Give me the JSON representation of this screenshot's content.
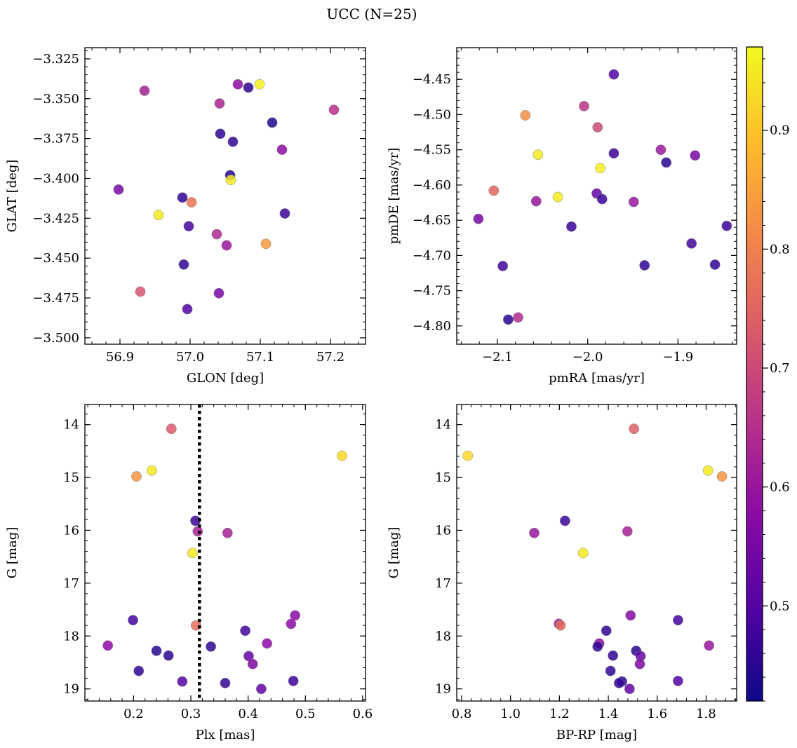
{
  "figure": {
    "title": "UCC (N=25)"
  },
  "colorbar": {
    "colormap": "plasma",
    "vmin": 0.42,
    "vmax": 0.97,
    "ticks": [
      0.5,
      0.6,
      0.7,
      0.8,
      0.9
    ],
    "tick_labels": [
      "0.5",
      "0.6",
      "0.7",
      "0.8",
      "0.9"
    ],
    "colors": [
      "#0d0887",
      "#5302a3",
      "#8b0aa5",
      "#b83289",
      "#db5c68",
      "#f48849",
      "#febd2a",
      "#f0f921"
    ]
  },
  "chart_data": [
    {
      "type": "scatter",
      "title": "",
      "xlabel": "GLON [deg]",
      "ylabel": "GLAT [deg]",
      "xlim": [
        56.85,
        57.25
      ],
      "ylim": [
        -3.504,
        -3.318
      ],
      "y_inverted": false,
      "xticks": [
        56.9,
        57.0,
        57.1,
        57.2
      ],
      "xtick_labels": [
        "56.9",
        "57.0",
        "57.1",
        "57.2"
      ],
      "yticks": [
        -3.325,
        -3.35,
        -3.375,
        -3.4,
        -3.425,
        -3.45,
        -3.475,
        -3.5
      ],
      "ytick_labels": [
        "−3.325",
        "−3.350",
        "−3.375",
        "−3.400",
        "−3.425",
        "−3.450",
        "−3.475",
        "−3.500"
      ],
      "x": [
        56.935,
        57.068,
        57.083,
        57.099,
        57.205,
        57.042,
        57.117,
        57.043,
        57.061,
        57.131,
        57.057,
        57.058,
        56.898,
        56.989,
        57.002,
        56.955,
        57.135,
        56.998,
        57.038,
        57.052,
        57.108,
        56.991,
        56.929,
        57.041,
        56.996
      ],
      "y": [
        -3.345,
        -3.341,
        -3.343,
        -3.341,
        -3.357,
        -3.353,
        -3.365,
        -3.372,
        -3.377,
        -3.382,
        -3.398,
        -3.401,
        -3.407,
        -3.412,
        -3.415,
        -3.423,
        -3.422,
        -3.43,
        -3.435,
        -3.442,
        -3.441,
        -3.454,
        -3.471,
        -3.472,
        -3.482
      ],
      "color_values": [
        0.62,
        0.58,
        0.46,
        0.96,
        0.65,
        0.63,
        0.44,
        0.46,
        0.46,
        0.58,
        0.45,
        0.95,
        0.55,
        0.46,
        0.78,
        0.95,
        0.47,
        0.48,
        0.64,
        0.6,
        0.84,
        0.46,
        0.72,
        0.55,
        0.5
      ]
    },
    {
      "type": "scatter",
      "title": "",
      "xlabel": "pmRA [mas/yr]",
      "ylabel": "pmDE [mas/yr]",
      "xlim": [
        -2.145,
        -1.835
      ],
      "ylim": [
        -4.826,
        -4.405
      ],
      "y_inverted": false,
      "xticks": [
        -2.1,
        -2.0,
        -1.9
      ],
      "xtick_labels": [
        "−2.1",
        "−2.0",
        "−1.9"
      ],
      "yticks": [
        -4.45,
        -4.5,
        -4.55,
        -4.6,
        -4.65,
        -4.7,
        -4.75,
        -4.8
      ],
      "ytick_labels": [
        "−4.45",
        "−4.50",
        "−4.55",
        "−4.60",
        "−4.65",
        "−4.70",
        "−4.75",
        "−4.80"
      ],
      "x": [
        -1.971,
        -2.004,
        -2.069,
        -1.989,
        -1.919,
        -2.055,
        -1.971,
        -1.881,
        -1.913,
        -1.986,
        -2.104,
        -2.033,
        -1.99,
        -1.984,
        -2.057,
        -1.949,
        -2.121,
        -2.018,
        -1.846,
        -1.885,
        -1.859,
        -1.937,
        -2.094,
        -2.088,
        -2.077
      ],
      "y": [
        -4.443,
        -4.488,
        -4.501,
        -4.518,
        -4.55,
        -4.557,
        -4.555,
        -4.558,
        -4.568,
        -4.576,
        -4.608,
        -4.617,
        -4.612,
        -4.62,
        -4.623,
        -4.624,
        -4.648,
        -4.659,
        -4.658,
        -4.683,
        -4.713,
        -4.714,
        -4.715,
        -4.791,
        -4.788
      ],
      "color_values": [
        0.5,
        0.66,
        0.82,
        0.7,
        0.6,
        0.95,
        0.47,
        0.55,
        0.45,
        0.96,
        0.75,
        0.95,
        0.52,
        0.47,
        0.6,
        0.6,
        0.55,
        0.47,
        0.47,
        0.48,
        0.46,
        0.46,
        0.48,
        0.45,
        0.64
      ]
    },
    {
      "type": "scatter",
      "title": "",
      "xlabel": "Plx [mas]",
      "ylabel": "G [mag]",
      "xlim": [
        0.115,
        0.605
      ],
      "ylim": [
        19.23,
        13.62
      ],
      "y_inverted": true,
      "xticks": [
        0.2,
        0.3,
        0.4,
        0.5,
        0.6
      ],
      "xtick_labels": [
        "0.2",
        "0.3",
        "0.4",
        "0.5",
        "0.6"
      ],
      "yticks": [
        14,
        15,
        16,
        17,
        18,
        19
      ],
      "ytick_labels": [
        "14",
        "15",
        "16",
        "17",
        "18",
        "19"
      ],
      "vline": {
        "x": 0.315,
        "style": "dotted",
        "color": "#000000"
      },
      "x": [
        0.266,
        0.232,
        0.205,
        0.564,
        0.308,
        0.312,
        0.364,
        0.303,
        0.199,
        0.309,
        0.482,
        0.475,
        0.395,
        0.155,
        0.335,
        0.433,
        0.24,
        0.261,
        0.401,
        0.209,
        0.408,
        0.285,
        0.36,
        0.479,
        0.423
      ],
      "y": [
        14.08,
        14.87,
        14.98,
        14.59,
        15.82,
        16.02,
        16.05,
        16.43,
        17.7,
        17.8,
        17.61,
        17.77,
        17.9,
        18.18,
        18.2,
        18.14,
        18.28,
        18.37,
        18.38,
        18.66,
        18.53,
        18.86,
        18.89,
        18.85,
        19.0
      ],
      "color_values": [
        0.73,
        0.95,
        0.83,
        0.93,
        0.47,
        0.62,
        0.62,
        0.95,
        0.48,
        0.77,
        0.57,
        0.58,
        0.48,
        0.58,
        0.46,
        0.58,
        0.45,
        0.45,
        0.53,
        0.46,
        0.56,
        0.5,
        0.46,
        0.47,
        0.52
      ]
    },
    {
      "type": "scatter",
      "title": "",
      "xlabel": "BP-RP [mag]",
      "ylabel": "G [mag]",
      "xlim": [
        0.78,
        1.925
      ],
      "ylim": [
        19.23,
        13.62
      ],
      "y_inverted": true,
      "xticks": [
        0.8,
        1.0,
        1.2,
        1.4,
        1.6,
        1.8
      ],
      "xtick_labels": [
        "0.8",
        "1.0",
        "1.2",
        "1.4",
        "1.6",
        "1.8"
      ],
      "yticks": [
        14,
        15,
        16,
        17,
        18,
        19
      ],
      "ytick_labels": [
        "14",
        "15",
        "16",
        "17",
        "18",
        "19"
      ],
      "x": [
        1.505,
        0.825,
        1.808,
        1.865,
        1.223,
        1.097,
        1.478,
        1.297,
        1.392,
        1.198,
        1.205,
        1.491,
        1.685,
        1.363,
        1.356,
        1.812,
        1.514,
        1.419,
        1.532,
        1.409,
        1.529,
        1.456,
        1.444,
        1.685,
        1.487
      ],
      "y": [
        14.08,
        14.59,
        14.87,
        14.98,
        15.82,
        16.05,
        16.02,
        16.43,
        17.9,
        17.77,
        17.8,
        17.61,
        17.7,
        18.14,
        18.2,
        18.18,
        18.28,
        18.37,
        18.38,
        18.66,
        18.53,
        18.86,
        18.89,
        18.85,
        19.0
      ],
      "color_values": [
        0.74,
        0.93,
        0.95,
        0.83,
        0.47,
        0.6,
        0.62,
        0.95,
        0.46,
        0.6,
        0.77,
        0.57,
        0.48,
        0.58,
        0.46,
        0.6,
        0.45,
        0.46,
        0.53,
        0.46,
        0.56,
        0.46,
        0.46,
        0.5,
        0.52
      ]
    }
  ]
}
